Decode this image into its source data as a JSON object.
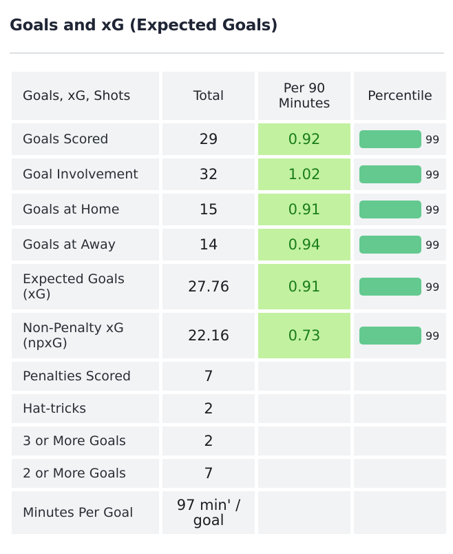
{
  "title": "Goals and xG (Expected Goals)",
  "table": {
    "headers": [
      "Goals, xG, Shots",
      "Total",
      "Per 90 Minutes",
      "Percentile"
    ],
    "rows": [
      {
        "label": "Goals Scored",
        "total": "29",
        "per90": "0.92",
        "percentile": "99",
        "pct_fraction": 0.99
      },
      {
        "label": "Goal Involvement",
        "total": "32",
        "per90": "1.02",
        "percentile": "99",
        "pct_fraction": 0.99
      },
      {
        "label": "Goals at Home",
        "total": "15",
        "per90": "0.91",
        "percentile": "99",
        "pct_fraction": 0.99
      },
      {
        "label": "Goals at Away",
        "total": "14",
        "per90": "0.94",
        "percentile": "99",
        "pct_fraction": 0.99
      },
      {
        "label": "Expected Goals (xG)",
        "total": "27.76",
        "per90": "0.91",
        "percentile": "99",
        "pct_fraction": 0.99
      },
      {
        "label": "Non-Penalty xG (npxG)",
        "total": "22.16",
        "per90": "0.73",
        "percentile": "99",
        "pct_fraction": 0.99
      },
      {
        "label": "Penalties Scored",
        "total": "7",
        "per90": "",
        "percentile": ""
      },
      {
        "label": "Hat-tricks",
        "total": "2",
        "per90": "",
        "percentile": ""
      },
      {
        "label": "3 or More Goals",
        "total": "2",
        "per90": "",
        "percentile": ""
      },
      {
        "label": "2 or More Goals",
        "total": "7",
        "per90": "",
        "percentile": ""
      },
      {
        "label": "Minutes Per Goal",
        "total": "97 min' / goal",
        "per90": "",
        "percentile": ""
      }
    ]
  },
  "colors": {
    "highlight": "#c2f1a0",
    "highlight_text": "#1a7d1a",
    "percentile_bar": "#63c98f",
    "cell_bg": "#f1f3f5"
  }
}
